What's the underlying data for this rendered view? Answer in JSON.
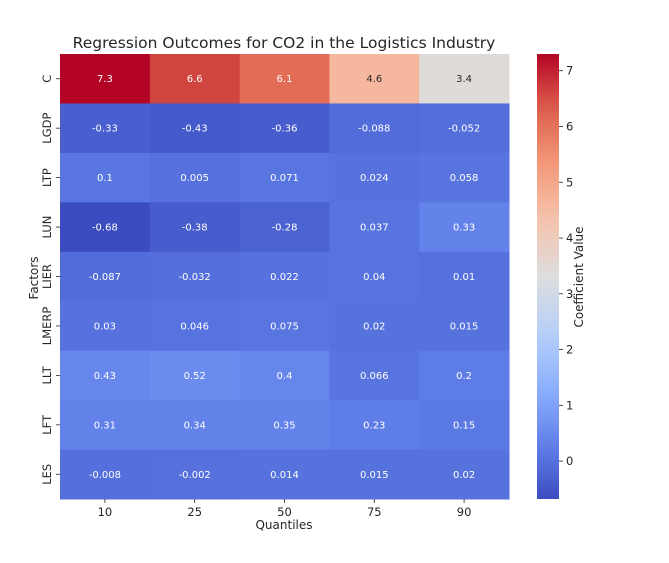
{
  "chart_data": {
    "type": "heatmap",
    "title": "Regression Outcomes for CO2 in the Logistics Industry",
    "xlabel": "Quantiles",
    "ylabel": "Factors",
    "colorbar_label": "Coefficient Value",
    "colormap": "coolwarm",
    "vmin": -0.68,
    "vmax": 7.3,
    "colorbar_ticks": [
      0,
      1,
      2,
      3,
      4,
      5,
      6,
      7
    ],
    "x_categories": [
      "10",
      "25",
      "50",
      "75",
      "90"
    ],
    "y_categories": [
      "C",
      "LGDP",
      "LTP",
      "LUN",
      "LIER",
      "LMERP",
      "LLT",
      "LFT",
      "LES"
    ],
    "values": [
      [
        7.3,
        6.6,
        6.1,
        4.6,
        3.4
      ],
      [
        -0.33,
        -0.43,
        -0.36,
        -0.088,
        -0.052
      ],
      [
        0.1,
        0.005,
        0.071,
        0.024,
        0.058
      ],
      [
        -0.68,
        -0.38,
        -0.28,
        0.037,
        0.33
      ],
      [
        -0.087,
        -0.032,
        0.022,
        0.04,
        0.01
      ],
      [
        0.03,
        0.046,
        0.075,
        0.02,
        0.015
      ],
      [
        0.43,
        0.52,
        0.4,
        0.066,
        0.2
      ],
      [
        0.31,
        0.34,
        0.35,
        0.23,
        0.15
      ],
      [
        -0.008,
        -0.002,
        0.014,
        0.015,
        0.02
      ]
    ],
    "labels": [
      [
        "7.3",
        "6.6",
        "6.1",
        "4.6",
        "3.4"
      ],
      [
        "-0.33",
        "-0.43",
        "-0.36",
        "-0.088",
        "-0.052"
      ],
      [
        "0.1",
        "0.005",
        "0.071",
        "0.024",
        "0.058"
      ],
      [
        "-0.68",
        "-0.38",
        "-0.28",
        "0.037",
        "0.33"
      ],
      [
        "-0.087",
        "-0.032",
        "0.022",
        "0.04",
        "0.01"
      ],
      [
        "0.03",
        "0.046",
        "0.075",
        "0.02",
        "0.015"
      ],
      [
        "0.43",
        "0.52",
        "0.4",
        "0.066",
        "0.2"
      ],
      [
        "0.31",
        "0.34",
        "0.35",
        "0.23",
        "0.15"
      ],
      [
        "-0.008",
        "-0.002",
        "0.014",
        "0.015",
        "0.02"
      ]
    ]
  }
}
